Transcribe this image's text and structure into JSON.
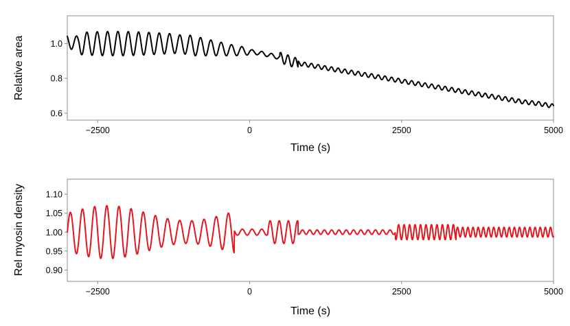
{
  "chart_data": [
    {
      "type": "line",
      "xlabel": "Time (s)",
      "ylabel": "Relative area",
      "xlim": [
        -3000,
        5000
      ],
      "ylim": [
        0.56,
        1.16
      ],
      "xticks": [
        -2500,
        0,
        2500,
        5000
      ],
      "xtick_labels": [
        "−2500",
        "0",
        "2500",
        "5000"
      ],
      "yticks": [
        0.6,
        0.8,
        1.0
      ],
      "ytick_labels": [
        "0.6",
        "0.8",
        "1.0"
      ],
      "grid": false,
      "series": [
        {
          "color": "#000000",
          "description": "oscillating signal, ~165 s period before t=0 (amplitude ~0.06 around 1.0), slow decline after t=0 from ~0.96 to ~0.64 at t=5000 with small oscillations",
          "x": [
            -3000,
            -2750,
            -2500,
            -2250,
            -2000,
            -1750,
            -1500,
            -1250,
            -1000,
            -750,
            -500,
            -250,
            0,
            250,
            500,
            750,
            1000,
            1250,
            1500,
            1750,
            2000,
            2250,
            2500,
            2750,
            3000,
            3250,
            3500,
            3750,
            4000,
            4250,
            4500,
            4750,
            5000
          ],
          "y": [
            1.01,
            1.0,
            1.0,
            1.0,
            1.0,
            1.0,
            1.0,
            1.0,
            0.99,
            0.98,
            0.97,
            0.96,
            0.955,
            0.94,
            0.92,
            0.89,
            0.875,
            0.86,
            0.845,
            0.83,
            0.815,
            0.8,
            0.785,
            0.77,
            0.755,
            0.74,
            0.725,
            0.71,
            0.695,
            0.68,
            0.665,
            0.655,
            0.64
          ]
        }
      ]
    },
    {
      "type": "line",
      "xlabel": "Time (s)",
      "ylabel": "Rel myosin density",
      "xlim": [
        -3000,
        5000
      ],
      "ylim": [
        0.87,
        1.14
      ],
      "xticks": [
        -2500,
        0,
        2500,
        5000
      ],
      "xtick_labels": [
        "−2500",
        "0",
        "2500",
        "5000"
      ],
      "yticks": [
        0.9,
        0.95,
        1.0,
        1.05,
        1.1
      ],
      "ytick_labels": [
        "0.90",
        "0.95",
        "1.00",
        "1.05",
        "1.10"
      ],
      "grid": false,
      "series": [
        {
          "color": "#e8141b",
          "description": "oscillating signal around 1.00, large amplitude (~0.06–0.08) before t=0, small after t=0, slightly larger bursts around t=500 and t=2500–5000",
          "x": [
            -3000,
            -2750,
            -2500,
            -2250,
            -2000,
            -1750,
            -1500,
            -1250,
            -1000,
            -750,
            -500,
            -250,
            0,
            250,
            500,
            750,
            1000,
            1250,
            1500,
            1750,
            2000,
            2250,
            2500,
            2750,
            3000,
            3250,
            3500,
            3750,
            4000,
            4250,
            4500,
            4750,
            5000
          ],
          "y": [
            1.0,
            1.0,
            1.0,
            1.0,
            1.0,
            1.0,
            1.0,
            1.0,
            1.0,
            1.0,
            1.0,
            1.0,
            1.0,
            1.0,
            1.0,
            1.0,
            1.0,
            1.0,
            1.0,
            1.0,
            1.0,
            1.0,
            1.0,
            1.0,
            1.0,
            1.0,
            1.0,
            1.0,
            1.0,
            1.0,
            1.0,
            1.0,
            1.0
          ]
        }
      ]
    }
  ]
}
